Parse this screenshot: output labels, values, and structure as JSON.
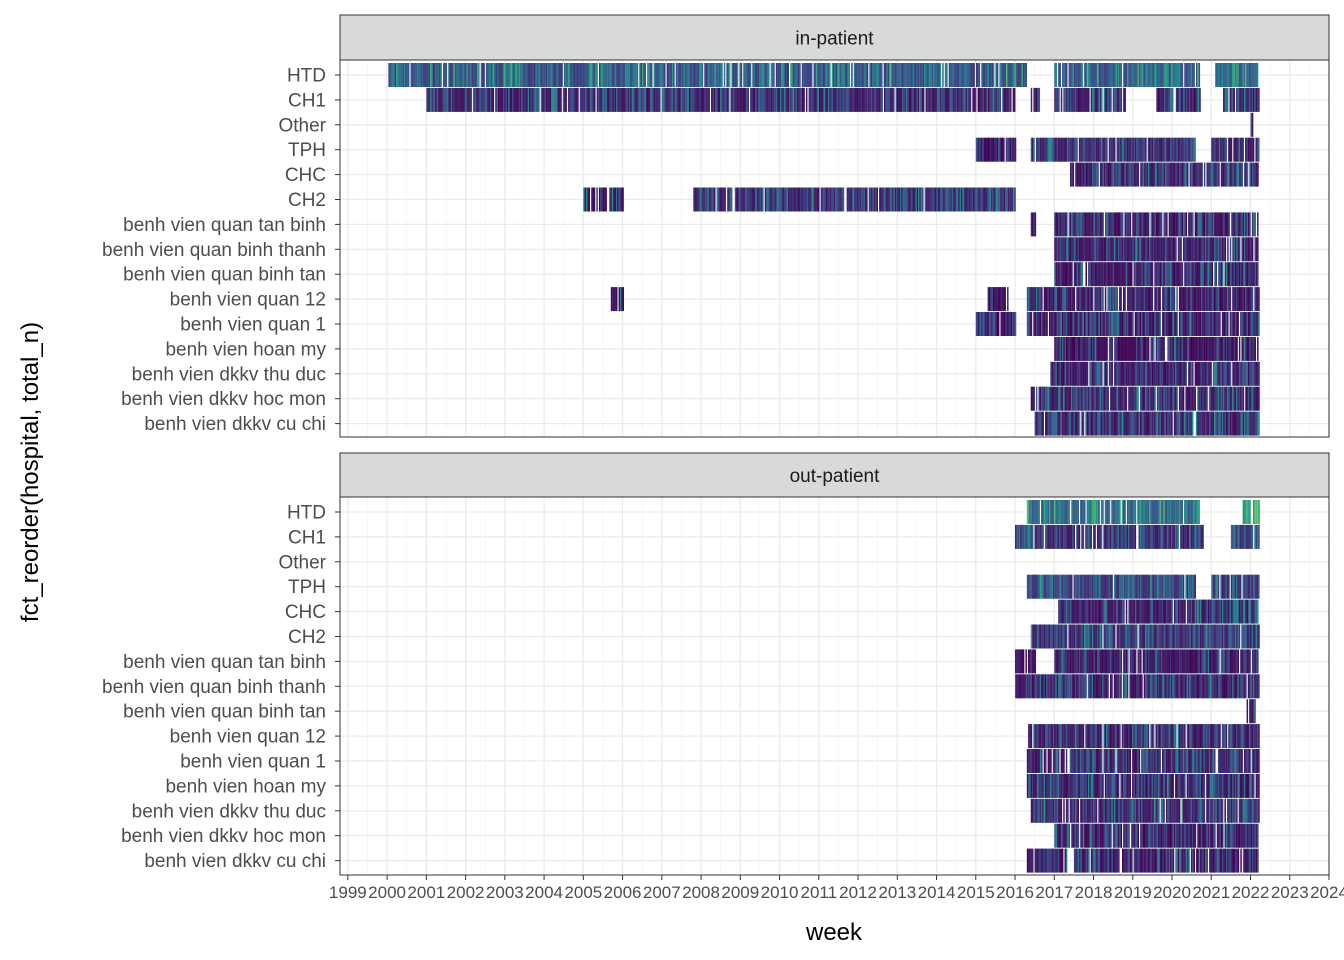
{
  "chart_data": {
    "type": "heatmap",
    "xlabel": "week",
    "ylabel": "fct_reorder(hospital, total_n)",
    "x_ticks": [
      "1999",
      "2000",
      "2001",
      "2002",
      "2003",
      "2004",
      "2005",
      "2006",
      "2007",
      "2008",
      "2009",
      "2010",
      "2011",
      "2012",
      "2013",
      "2014",
      "2015",
      "2016",
      "2017",
      "2018",
      "2019",
      "2020",
      "2021",
      "2022",
      "2023",
      "2024"
    ],
    "xlim": [
      1998.8,
      2024.0
    ],
    "hospitals": [
      "HTD",
      "CH1",
      "Other",
      "TPH",
      "CHC",
      "CH2",
      "benh vien quan tan binh",
      "benh vien quan binh thanh",
      "benh vien quan binh tan",
      "benh vien quan 12",
      "benh vien quan 1",
      "benh vien hoan my",
      "benh vien dkkv thu duc",
      "benh vien dkkv hoc mon",
      "benh vien dkkv cu chi"
    ],
    "grid": true,
    "color_scale": "viridis",
    "colors": [
      "#440154",
      "#3b528b",
      "#21918c",
      "#5ec962",
      "#fde725"
    ],
    "panels": [
      {
        "label": "in-patient",
        "segments": {
          "HTD": [
            [
              2000.0,
              2016.1,
              0.22
            ],
            [
              2016.1,
              2016.3,
              0.15
            ],
            [
              2017.0,
              2020.7,
              0.25
            ],
            [
              2021.1,
              2022.2,
              0.3
            ]
          ],
          "CH1": [
            [
              2001.0,
              2016.0,
              0.08
            ],
            [
              2016.4,
              2016.6,
              0.05
            ],
            [
              2017.0,
              2018.8,
              0.08
            ],
            [
              2019.6,
              2020.7,
              0.06
            ],
            [
              2021.3,
              2022.2,
              0.06
            ]
          ],
          "Other": [
            [
              2022.0,
              2022.05,
              0.02
            ]
          ],
          "TPH": [
            [
              2015.0,
              2016.0,
              0.05
            ],
            [
              2016.4,
              2020.6,
              0.1
            ],
            [
              2021.0,
              2022.2,
              0.08
            ]
          ],
          "CHC": [
            [
              2017.4,
              2022.2,
              0.08
            ]
          ],
          "CH2": [
            [
              2005.0,
              2006.0,
              0.05
            ],
            [
              2007.8,
              2016.0,
              0.1
            ]
          ],
          "benh vien quan tan binh": [
            [
              2016.4,
              2016.5,
              0.03
            ],
            [
              2017.0,
              2022.2,
              0.06
            ]
          ],
          "benh vien quan binh thanh": [
            [
              2017.0,
              2022.2,
              0.07
            ]
          ],
          "benh vien quan binh tan": [
            [
              2017.0,
              2022.2,
              0.05
            ]
          ],
          "benh vien quan 12": [
            [
              2005.7,
              2006.0,
              0.03
            ],
            [
              2015.3,
              2015.8,
              0.04
            ],
            [
              2016.3,
              2022.2,
              0.07
            ]
          ],
          "benh vien quan 1": [
            [
              2015.0,
              2016.0,
              0.05
            ],
            [
              2016.3,
              2022.2,
              0.06
            ]
          ],
          "benh vien hoan my": [
            [
              2017.0,
              2022.2,
              0.05
            ]
          ],
          "benh vien dkkv thu duc": [
            [
              2016.9,
              2022.2,
              0.06
            ]
          ],
          "benh vien dkkv hoc mon": [
            [
              2016.4,
              2022.2,
              0.08
            ]
          ],
          "benh vien dkkv cu chi": [
            [
              2016.5,
              2022.2,
              0.08
            ]
          ]
        }
      },
      {
        "label": "out-patient",
        "segments": {
          "HTD": [
            [
              2016.3,
              2020.7,
              0.3
            ],
            [
              2021.8,
              2022.2,
              0.55
            ]
          ],
          "CH1": [
            [
              2016.0,
              2020.8,
              0.1
            ],
            [
              2021.5,
              2022.2,
              0.15
            ]
          ],
          "Other": [],
          "TPH": [
            [
              2016.3,
              2020.6,
              0.18
            ],
            [
              2021.0,
              2022.2,
              0.15
            ]
          ],
          "CHC": [
            [
              2017.1,
              2022.2,
              0.08
            ]
          ],
          "CH2": [
            [
              2016.4,
              2022.2,
              0.12
            ]
          ],
          "benh vien quan tan binh": [
            [
              2016.0,
              2016.5,
              0.03
            ],
            [
              2017.0,
              2022.2,
              0.06
            ]
          ],
          "benh vien quan binh thanh": [
            [
              2016.0,
              2022.2,
              0.06
            ]
          ],
          "benh vien quan binh tan": [
            [
              2021.9,
              2022.1,
              0.03
            ]
          ],
          "benh vien quan 12": [
            [
              2016.3,
              2022.2,
              0.08
            ]
          ],
          "benh vien quan 1": [
            [
              2016.3,
              2022.2,
              0.08
            ]
          ],
          "benh vien hoan my": [
            [
              2016.3,
              2022.2,
              0.07
            ]
          ],
          "benh vien dkkv thu duc": [
            [
              2016.4,
              2022.2,
              0.1
            ]
          ],
          "benh vien dkkv hoc mon": [
            [
              2017.0,
              2022.2,
              0.06
            ]
          ],
          "benh vien dkkv cu chi": [
            [
              2016.3,
              2017.3,
              0.04
            ],
            [
              2017.5,
              2022.2,
              0.06
            ]
          ]
        }
      }
    ]
  }
}
